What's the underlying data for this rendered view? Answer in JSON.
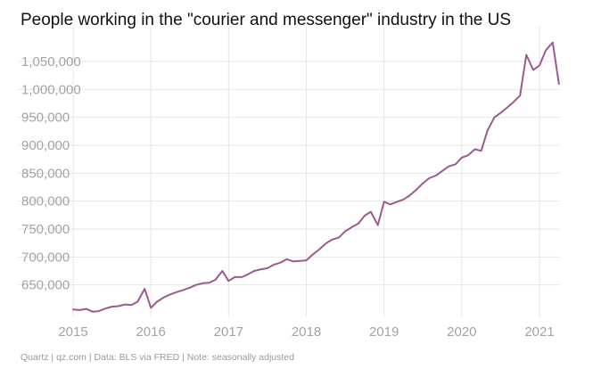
{
  "title": "People working in the \"courier and messenger\" industry in the US",
  "footer": "Quartz | qz.com | Data: BLS via FRED | Note: seasonally adjusted",
  "colors": {
    "line": "#9b5b8e",
    "grid": "#e6e6e6",
    "tick_text": "#a3a3a3"
  },
  "chart_data": {
    "type": "line",
    "title": "People working in the \"courier and messenger\" industry in the US",
    "xlabel": "",
    "ylabel": "",
    "grid": true,
    "ylim": [
      600000,
      1070000
    ],
    "xlim": [
      2015.0,
      2021.25
    ],
    "yticks": [
      650000,
      700000,
      750000,
      800000,
      850000,
      900000,
      950000,
      1000000,
      1050000
    ],
    "ytick_labels": [
      "650,000",
      "700,000",
      "750,000",
      "800,000",
      "850,000",
      "900,000",
      "950,000",
      "1,000,000",
      "1,050,000"
    ],
    "xticks": [
      2015,
      2016,
      2017,
      2018,
      2019,
      2020,
      2021
    ],
    "xtick_labels": [
      "2015",
      "2016",
      "2017",
      "2018",
      "2019",
      "2020",
      "2021"
    ],
    "series": [
      {
        "x": [
          2015.0,
          2015.08,
          2015.17,
          2015.25,
          2015.33,
          2015.42,
          2015.5,
          2015.58,
          2015.67,
          2015.75,
          2015.83,
          2015.92,
          2016.0,
          2016.08,
          2016.17,
          2016.25,
          2016.33,
          2016.42,
          2016.5,
          2016.58,
          2016.67,
          2016.75,
          2016.83,
          2016.92,
          2017.0,
          2017.08,
          2017.17,
          2017.25,
          2017.33,
          2017.42,
          2017.5,
          2017.58,
          2017.67,
          2017.75,
          2017.83,
          2017.92,
          2018.0,
          2018.08,
          2018.17,
          2018.25,
          2018.33,
          2018.42,
          2018.5,
          2018.58,
          2018.67,
          2018.75,
          2018.83,
          2018.92,
          2019.0,
          2019.08,
          2019.17,
          2019.25,
          2019.33,
          2019.42,
          2019.5,
          2019.58,
          2019.67,
          2019.75,
          2019.83,
          2019.92,
          2020.0,
          2020.08,
          2020.17,
          2020.25,
          2020.33,
          2020.42,
          2020.5,
          2020.58,
          2020.67,
          2020.75,
          2020.83,
          2020.92,
          2021.0,
          2021.08,
          2021.17,
          2021.25
        ],
        "y": [
          606000,
          605000,
          607000,
          602000,
          603000,
          608000,
          611000,
          612000,
          615000,
          614000,
          620000,
          643000,
          609000,
          620000,
          628000,
          633000,
          637000,
          641000,
          645000,
          650000,
          653000,
          654000,
          659000,
          675000,
          657000,
          664000,
          664000,
          669000,
          675000,
          678000,
          680000,
          686000,
          690000,
          696000,
          692000,
          693000,
          694000,
          704000,
          714000,
          724000,
          731000,
          735000,
          746000,
          753000,
          760000,
          774000,
          781000,
          757000,
          799000,
          794000,
          799000,
          803000,
          810000,
          821000,
          832000,
          841000,
          846000,
          854000,
          862000,
          866000,
          878000,
          882000,
          893000,
          890000,
          926000,
          950000,
          958000,
          967000,
          978000,
          989000,
          1062000,
          1035000,
          1043000,
          1070000,
          1084000,
          1010000
        ]
      }
    ]
  }
}
